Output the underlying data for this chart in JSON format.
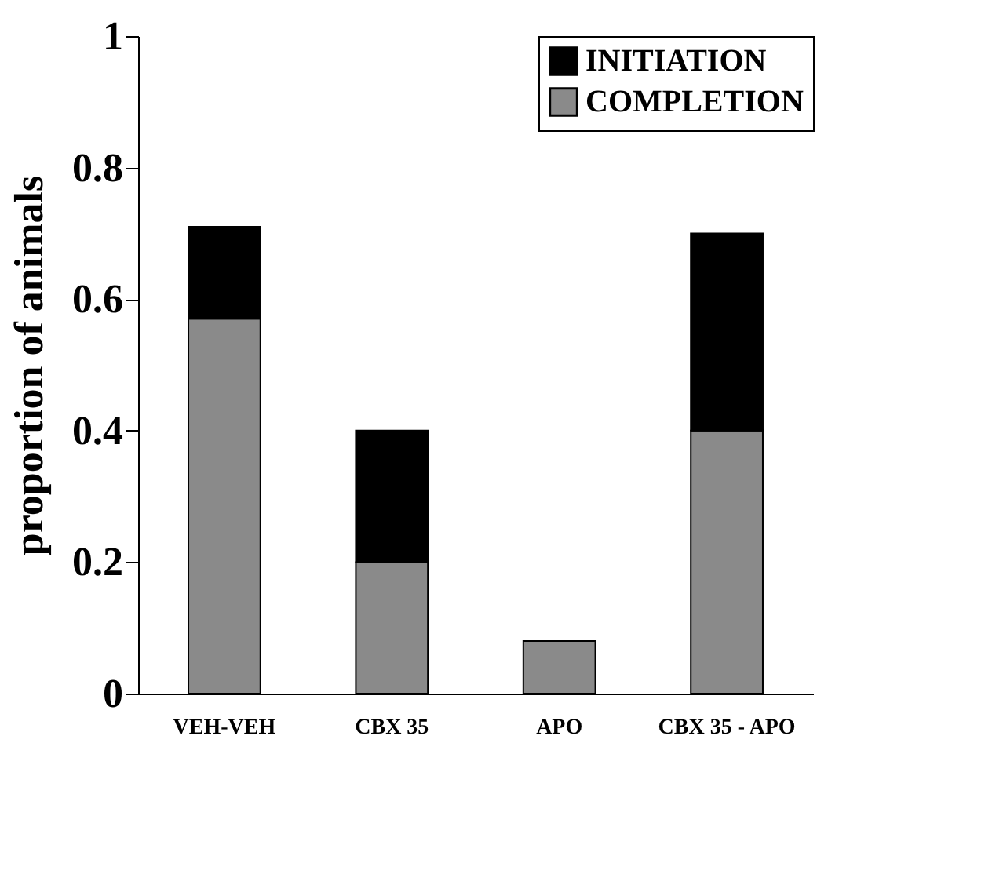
{
  "chart_data": {
    "type": "bar",
    "stacked": true,
    "ylabel": "proportion of animals",
    "categories": [
      "VEH-VEH",
      "CBX 35",
      "APO",
      "CBX 35 - APO"
    ],
    "series": [
      {
        "name": "COMPLETION",
        "color": "#8a8a8a",
        "values": [
          0.57,
          0.2,
          0.08,
          0.4
        ]
      },
      {
        "name": "INITIATION",
        "color": "#000000",
        "values": [
          0.14,
          0.2,
          0,
          0.3
        ]
      }
    ],
    "ylim": [
      0,
      1
    ],
    "yticks": [
      0,
      0.2,
      0.4,
      0.6,
      0.8,
      1
    ],
    "grid": false,
    "legend": "top right"
  }
}
